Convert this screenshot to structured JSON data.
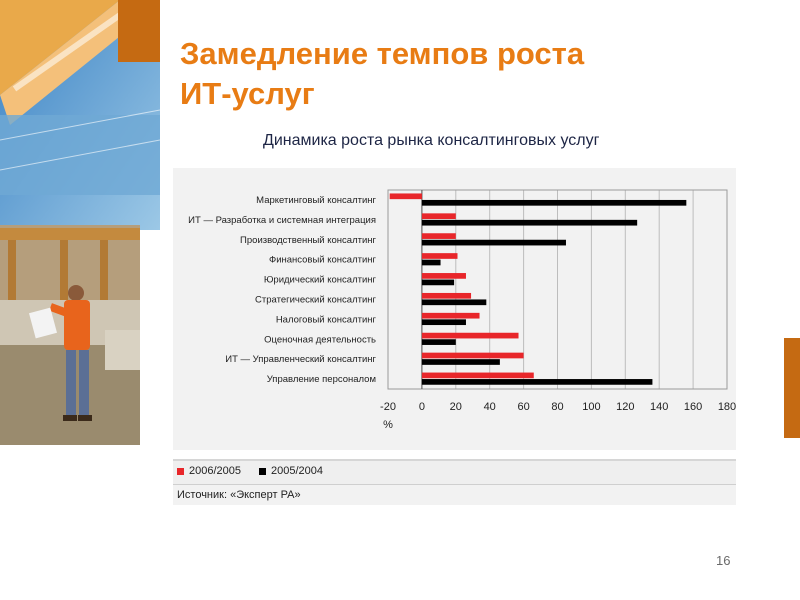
{
  "slide": {
    "title_line1": "Замедление темпов роста",
    "title_line2": "ИТ-услуг",
    "page_number": "16",
    "colors": {
      "title": "#e87c14",
      "accent": "#c56a12"
    }
  },
  "chart_data": {
    "type": "bar",
    "orientation": "horizontal",
    "title": "Динамика роста рынка консалтинговых услуг",
    "categories": [
      "Маркетинговый консалтинг",
      "ИТ — Разработка и системная интеграция",
      "Производственный консалтинг",
      "Финансовый консалтинг",
      "Юридический консалтинг",
      "Стратегический консалтинг",
      "Налоговый консалтинг",
      "Оценочная деятельность",
      "ИТ — Управленческий консалтинг",
      "Управление персоналом"
    ],
    "series": [
      {
        "name": "2006/2005",
        "color": "#e8262a",
        "values": [
          -19,
          20,
          20,
          21,
          26,
          29,
          34,
          57,
          60,
          66
        ]
      },
      {
        "name": "2005/2004",
        "color": "#000000",
        "values": [
          156,
          127,
          85,
          11,
          19,
          38,
          26,
          20,
          46,
          136
        ]
      }
    ],
    "x_ticks": [
      "-20",
      "0",
      "20",
      "40",
      "60",
      "80",
      "100",
      "120",
      "140",
      "160",
      "180"
    ],
    "xlim": [
      -20,
      180
    ],
    "xlabel": "%",
    "grid": true,
    "legend_position": "bottom",
    "source": "Источник: «Эксперт РА»"
  }
}
